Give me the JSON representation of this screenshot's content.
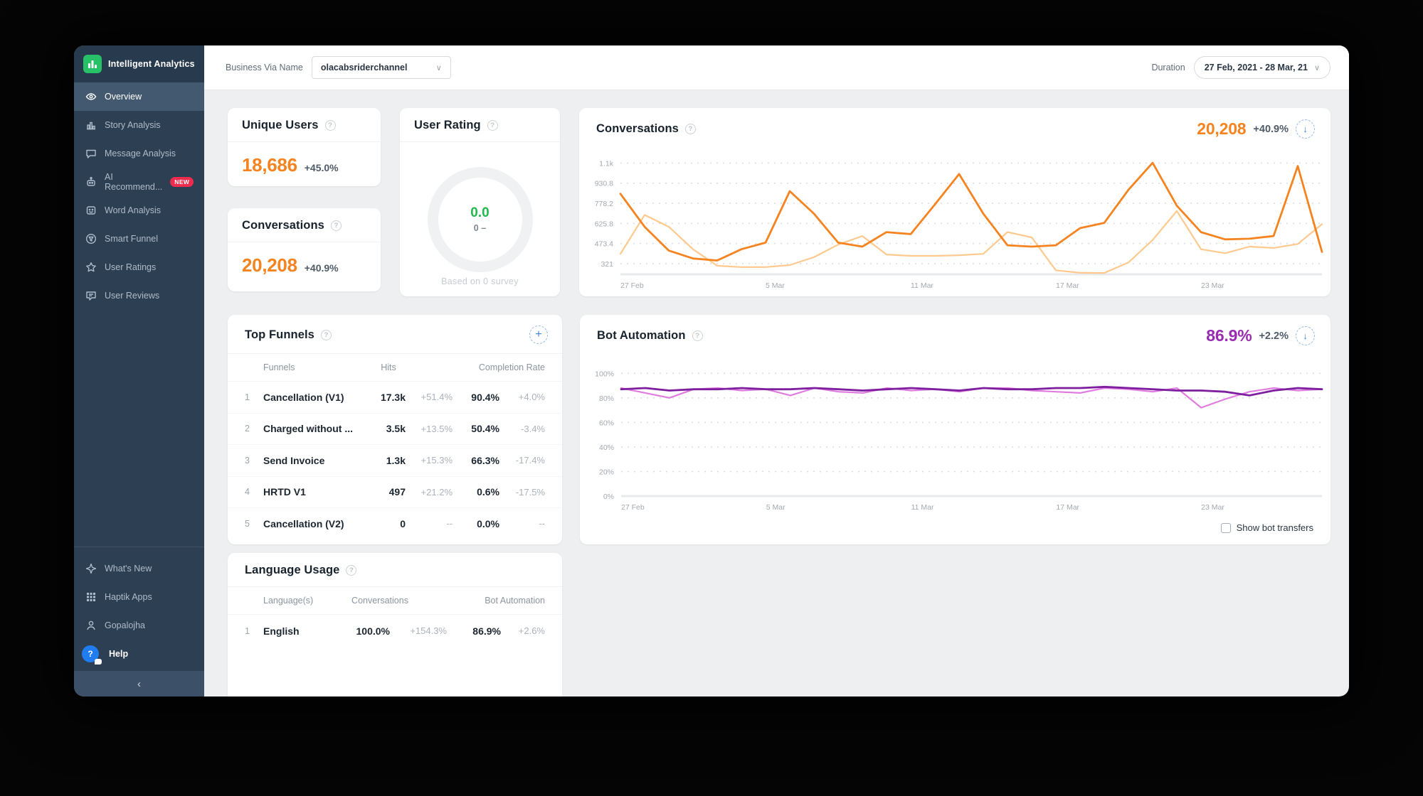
{
  "app": {
    "title": "Intelligent Analytics"
  },
  "sidebar": {
    "items": [
      {
        "label": "Overview"
      },
      {
        "label": "Story Analysis"
      },
      {
        "label": "Message Analysis"
      },
      {
        "label": "AI Recommend...",
        "badge": "NEW"
      },
      {
        "label": "Word Analysis"
      },
      {
        "label": "Smart Funnel"
      },
      {
        "label": "User Ratings"
      },
      {
        "label": "User Reviews"
      }
    ],
    "footer_items": [
      {
        "label": "What's New"
      },
      {
        "label": "Haptik Apps"
      },
      {
        "label": "Gopalojha"
      },
      {
        "label": "Help"
      }
    ],
    "collapse": "‹"
  },
  "topbar": {
    "business_label": "Business Via Name",
    "business_value": "olacabsriderchannel",
    "duration_label": "Duration",
    "duration_value": "27 Feb, 2021 - 28 Mar, 21"
  },
  "summary": {
    "unique_users": {
      "title": "Unique Users",
      "value": "18,686",
      "delta": "+45.0%"
    },
    "conversations": {
      "title": "Conversations",
      "value": "20,208",
      "delta": "+40.9%"
    },
    "user_rating": {
      "title": "User Rating",
      "value": "0.0",
      "sub": "0 –",
      "caption": "Based on 0 survey"
    }
  },
  "conversations_card": {
    "title": "Conversations",
    "value": "20,208",
    "delta": "+40.9%"
  },
  "bot_card": {
    "title": "Bot Automation",
    "value": "86.9%",
    "delta": "+2.2%",
    "checkbox_label": "Show bot transfers"
  },
  "top_funnels": {
    "title": "Top Funnels",
    "columns": [
      "Funnels",
      "Hits",
      "Completion Rate"
    ],
    "rows": [
      {
        "rank": "1",
        "name": "Cancellation (V1)",
        "hits": "17.3k",
        "hits_delta": "+51.4%",
        "rate": "90.4%",
        "rate_delta": "+4.0%"
      },
      {
        "rank": "2",
        "name": "Charged without ...",
        "hits": "3.5k",
        "hits_delta": "+13.5%",
        "rate": "50.4%",
        "rate_delta": "-3.4%"
      },
      {
        "rank": "3",
        "name": "Send Invoice",
        "hits": "1.3k",
        "hits_delta": "+15.3%",
        "rate": "66.3%",
        "rate_delta": "-17.4%"
      },
      {
        "rank": "4",
        "name": "HRTD V1",
        "hits": "497",
        "hits_delta": "+21.2%",
        "rate": "0.6%",
        "rate_delta": "-17.5%"
      },
      {
        "rank": "5",
        "name": "Cancellation (V2)",
        "hits": "0",
        "hits_delta": "--",
        "rate": "0.0%",
        "rate_delta": "--"
      }
    ]
  },
  "language_usage": {
    "title": "Language Usage",
    "columns": [
      "Language(s)",
      "Conversations",
      "Bot Automation"
    ],
    "rows": [
      {
        "rank": "1",
        "name": "English",
        "conversations": "100.0%",
        "conversations_delta": "+154.3%",
        "bot_automation": "86.9%",
        "bot_automation_delta": "+2.6%"
      }
    ]
  },
  "chart_data": [
    {
      "type": "line",
      "title": "Conversations",
      "x_start": "27 Feb",
      "x_end": "28 Mar",
      "ylim": [
        240,
        1150
      ],
      "yticks": [
        {
          "v": 321,
          "label": "321"
        },
        {
          "v": 473.4,
          "label": "473.4"
        },
        {
          "v": 625.8,
          "label": "625.8"
        },
        {
          "v": 778.2,
          "label": "778.2"
        },
        {
          "v": 930.8,
          "label": "930.8"
        },
        {
          "v": 1083.2,
          "label": "1.1k"
        }
      ],
      "xticks": [
        {
          "i": 0,
          "label": "27 Feb"
        },
        {
          "i": 6,
          "label": "5 Mar"
        },
        {
          "i": 12,
          "label": "11 Mar"
        },
        {
          "i": 18,
          "label": "17 Mar"
        },
        {
          "i": 24,
          "label": "23 Mar"
        }
      ],
      "series": [
        {
          "name": "current",
          "color": "#f5831f",
          "width": 2.8,
          "values": [
            850,
            600,
            420,
            360,
            345,
            430,
            480,
            870,
            700,
            480,
            450,
            560,
            545,
            770,
            1000,
            700,
            460,
            450,
            460,
            590,
            630,
            880,
            1085,
            760,
            560,
            505,
            510,
            530,
            1060,
            410
          ]
        },
        {
          "name": "previous",
          "color": "#ffc98e",
          "width": 2.2,
          "values": [
            395,
            690,
            600,
            430,
            305,
            295,
            295,
            310,
            370,
            465,
            530,
            390,
            380,
            380,
            385,
            395,
            560,
            520,
            270,
            252,
            250,
            330,
            500,
            720,
            430,
            400,
            450,
            440,
            470,
            620
          ]
        }
      ]
    },
    {
      "type": "line",
      "title": "Bot Automation",
      "x_start": "27 Feb",
      "x_end": "28 Mar",
      "ylim": [
        0,
        110
      ],
      "yticks": [
        {
          "v": 0,
          "label": "0%"
        },
        {
          "v": 20,
          "label": "20%"
        },
        {
          "v": 40,
          "label": "40%"
        },
        {
          "v": 60,
          "label": "60%"
        },
        {
          "v": 80,
          "label": "80%"
        },
        {
          "v": 100,
          "label": "100%"
        }
      ],
      "xticks": [
        {
          "i": 0,
          "label": "27 Feb"
        },
        {
          "i": 6,
          "label": "5 Mar"
        },
        {
          "i": 12,
          "label": "11 Mar"
        },
        {
          "i": 18,
          "label": "17 Mar"
        },
        {
          "i": 24,
          "label": "23 Mar"
        }
      ],
      "series": [
        {
          "name": "current",
          "color": "#7d1f9e",
          "width": 2.8,
          "values": [
            87,
            88,
            86,
            87,
            87,
            88,
            87,
            87,
            88,
            87,
            86,
            87,
            88,
            87,
            86,
            88,
            87,
            87,
            88,
            88,
            89,
            88,
            87,
            86,
            86,
            85,
            82,
            86,
            88,
            87
          ]
        },
        {
          "name": "previous",
          "color": "#e07ce0",
          "width": 2.2,
          "values": [
            88,
            84,
            80,
            87,
            88,
            86,
            87,
            82,
            88,
            85,
            84,
            88,
            86,
            87,
            85,
            88,
            88,
            86,
            85,
            84,
            88,
            87,
            85,
            88,
            72,
            79,
            85,
            88,
            86,
            87
          ]
        }
      ]
    }
  ]
}
